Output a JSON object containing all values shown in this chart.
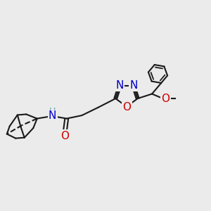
{
  "bg_color": "#ebebeb",
  "bond_color": "#1a1a1a",
  "bond_width": 1.5,
  "atom_colors": {
    "N": "#0000cc",
    "O": "#cc0000",
    "H": "#5f9ea0"
  },
  "font_size": 9,
  "figsize": [
    3.0,
    3.0
  ],
  "dpi": 100,
  "xlim": [
    0,
    10
  ],
  "ylim": [
    0,
    10
  ]
}
